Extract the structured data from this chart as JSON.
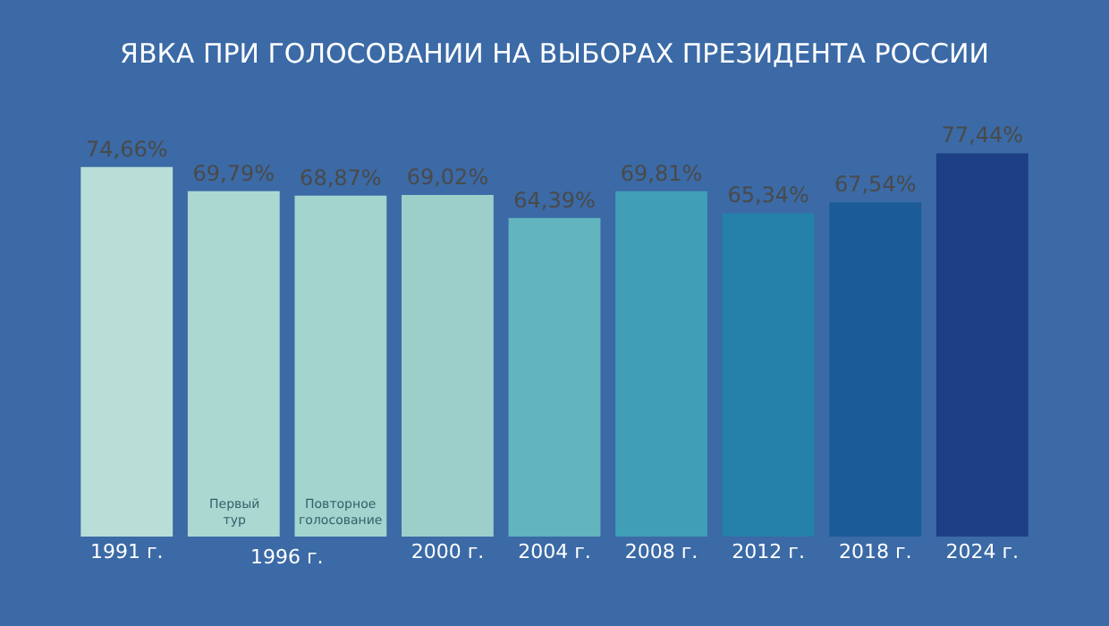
{
  "chart_data": {
    "type": "bar",
    "title": "ЯВКА ПРИ ГОЛОСОВАНИИ НА ВЫБОРАХ ПРЕЗИДЕНТА РОССИИ",
    "categories": [
      "1991 г.",
      null,
      null,
      "2000 г.",
      "2004 г.",
      "2008 г.",
      "2012 г.",
      "2018 г.",
      "2024 г."
    ],
    "values": [
      74.66,
      69.79,
      68.87,
      69.02,
      64.39,
      69.81,
      65.34,
      67.54,
      77.44
    ],
    "colors": [
      "#b9ded8",
      "#acd8d2",
      "#a3d4ce",
      "#9ccfca",
      "#62b5bf",
      "#409fb6",
      "#2580aa",
      "#1b5c98",
      "#1d3f86"
    ],
    "value_labels": [
      "74,66%",
      "69,79%",
      "68,87%",
      "69,02%",
      "64,39%",
      "69,81%",
      "65,34%",
      "67,54%",
      "77,44%"
    ],
    "annotations": [
      "1996 г.",
      "Первый тур",
      "Повторное голосование"
    ]
  }
}
